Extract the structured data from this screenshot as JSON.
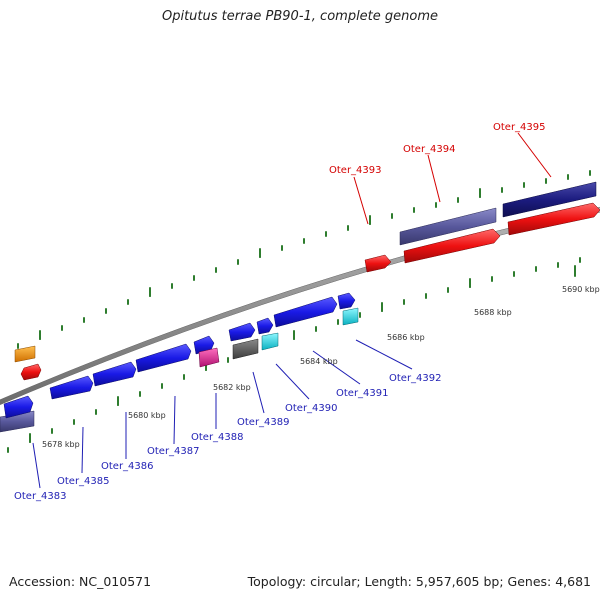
{
  "title": "Opitutus terrae PB90-1, complete genome",
  "accession": "Accession: NC_010571",
  "summary": "Topology: circular; Length: 5,957,605 bp; Genes: 4,681",
  "kbp_labels": [
    "5678 kbp",
    "5680 kbp",
    "5682 kbp",
    "5684 kbp",
    "5686 kbp",
    "5688 kbp",
    "5690 kbp"
  ],
  "gene_labels_blue": [
    "Oter_4383",
    "Oter_4385",
    "Oter_4386",
    "Oter_4387",
    "Oter_4388",
    "Oter_4389",
    "Oter_4390",
    "Oter_4391",
    "Oter_4392"
  ],
  "gene_labels_red": [
    "Oter_4393",
    "Oter_4394",
    "Oter_4395"
  ],
  "colors": {
    "backbone": "#8c8c8c",
    "gene_blue": "#1a1ae6",
    "gene_navy": "#1c1c80",
    "gene_slate": "#58589c",
    "gene_red": "#ee1111",
    "gene_orange": "#f08c00",
    "gene_magenta": "#e0208c",
    "gene_cyan": "#10e0f0",
    "gene_gray": "#5a5a5a",
    "tick": "#2e7d2e",
    "label_blue": "#1f1fb4",
    "label_red": "#d40000"
  }
}
